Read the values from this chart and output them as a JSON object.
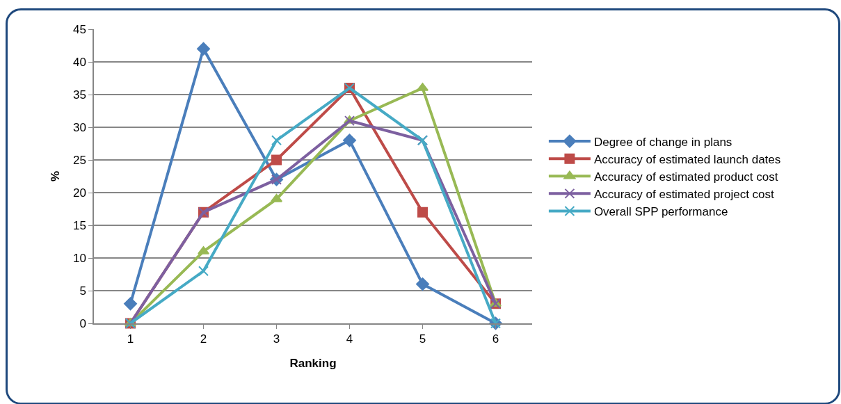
{
  "chart_data": {
    "type": "line",
    "xlabel": "Ranking",
    "ylabel": "%",
    "categories": [
      "1",
      "2",
      "3",
      "4",
      "5",
      "6"
    ],
    "ylim": [
      0,
      45
    ],
    "yticks": [
      0,
      5,
      10,
      15,
      20,
      25,
      30,
      35,
      40,
      45
    ],
    "grid": "y",
    "legend": "right",
    "series": [
      {
        "name": "Degree of change in plans",
        "color": "#4a7ebb",
        "marker": "diamond",
        "values": [
          3,
          42,
          22,
          28,
          6,
          0
        ]
      },
      {
        "name": "Accuracy of estimated launch dates",
        "color": "#be4b48",
        "marker": "square",
        "values": [
          0,
          17,
          25,
          36,
          17,
          3
        ]
      },
      {
        "name": "Accuracy of estimated product cost",
        "color": "#98b954",
        "marker": "triangle",
        "values": [
          0,
          11,
          19,
          31,
          36,
          3
        ]
      },
      {
        "name": "Accuracy of estimated project cost",
        "color": "#7d60a0",
        "marker": "cross",
        "values": [
          0,
          17,
          22,
          31,
          28,
          3
        ]
      },
      {
        "name": "Overall SPP performance",
        "color": "#46aac5",
        "marker": "cross",
        "values": [
          0,
          8,
          28,
          36,
          28,
          0
        ]
      }
    ]
  }
}
